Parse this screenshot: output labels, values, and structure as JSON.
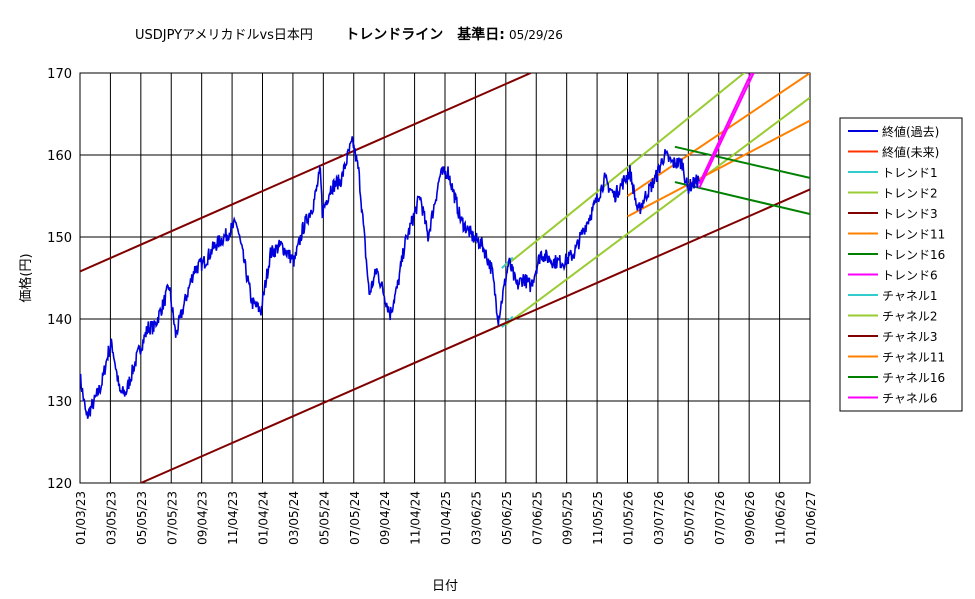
{
  "chart_data": {
    "type": "line",
    "title_left": "USDJPYアメリカドルvs日本円",
    "title_right": "トレンドライン　基準日:",
    "title_date": "05/29/26",
    "xlabel": "日付",
    "ylabel": "価格(円)",
    "ylim": [
      120,
      170
    ],
    "yticks": [
      120,
      130,
      140,
      150,
      160,
      170
    ],
    "grid": true,
    "legend_position": "right",
    "x_range": [
      "2023-01-03",
      "2027-01-06"
    ],
    "x_ticks": [
      "01/03/23",
      "03/05/23",
      "05/05/23",
      "07/05/23",
      "09/04/23",
      "11/04/23",
      "01/04/24",
      "03/05/24",
      "05/05/24",
      "07/05/24",
      "09/04/24",
      "11/04/24",
      "01/04/25",
      "03/06/25",
      "05/06/25",
      "07/06/25",
      "09/05/25",
      "11/05/25",
      "01/05/26",
      "03/07/26",
      "05/07/26",
      "07/07/26",
      "09/06/26",
      "11/06/26",
      "01/06/27"
    ],
    "legend": [
      {
        "name": "終値(過去)",
        "color": "#0000dd"
      },
      {
        "name": "終値(未来)",
        "color": "#ff3300"
      },
      {
        "name": "トレンド1",
        "color": "#33cccc"
      },
      {
        "name": "トレンド2",
        "color": "#99cc33"
      },
      {
        "name": "トレンド3",
        "color": "#800000"
      },
      {
        "name": "トレンド11",
        "color": "#ff8000"
      },
      {
        "name": "トレンド16",
        "color": "#008000"
      },
      {
        "name": "トレンド6",
        "color": "#ff00ff"
      },
      {
        "name": "チャネル1",
        "color": "#33cccc"
      },
      {
        "name": "チャネル2",
        "color": "#99cc33"
      },
      {
        "name": "チャネル3",
        "color": "#800000"
      },
      {
        "name": "チャネル11",
        "color": "#ff8000"
      },
      {
        "name": "チャネル16",
        "color": "#008000"
      },
      {
        "name": "チャネル6",
        "color": "#ff00ff"
      }
    ],
    "close_past": [
      [
        "2023-01-03",
        133
      ],
      [
        "2023-01-16",
        128
      ],
      [
        "2023-02-01",
        130
      ],
      [
        "2023-02-15",
        132
      ],
      [
        "2023-03-01",
        136
      ],
      [
        "2023-03-08",
        137
      ],
      [
        "2023-03-24",
        131
      ],
      [
        "2023-04-05",
        131
      ],
      [
        "2023-04-20",
        134
      ],
      [
        "2023-05-01",
        136
      ],
      [
        "2023-05-20",
        139
      ],
      [
        "2023-06-01",
        139
      ],
      [
        "2023-06-20",
        142
      ],
      [
        "2023-07-01",
        144
      ],
      [
        "2023-07-14",
        138
      ],
      [
        "2023-08-01",
        142
      ],
      [
        "2023-08-20",
        146
      ],
      [
        "2023-09-10",
        147
      ],
      [
        "2023-10-01",
        149
      ],
      [
        "2023-10-20",
        150
      ],
      [
        "2023-11-13",
        151.7
      ],
      [
        "2023-12-14",
        142
      ],
      [
        "2024-01-01",
        141
      ],
      [
        "2024-01-20",
        148
      ],
      [
        "2024-02-10",
        149
      ],
      [
        "2024-03-08",
        147
      ],
      [
        "2024-03-25",
        151
      ],
      [
        "2024-04-15",
        154
      ],
      [
        "2024-04-29",
        158
      ],
      [
        "2024-05-03",
        153
      ],
      [
        "2024-05-20",
        156
      ],
      [
        "2024-06-10",
        157
      ],
      [
        "2024-06-26",
        160.5
      ],
      [
        "2024-07-03",
        161.6
      ],
      [
        "2024-07-15",
        158
      ],
      [
        "2024-08-05",
        143
      ],
      [
        "2024-08-20",
        146
      ],
      [
        "2024-09-16",
        140.6
      ],
      [
        "2024-10-01",
        144
      ],
      [
        "2024-10-15",
        149
      ],
      [
        "2024-11-15",
        155
      ],
      [
        "2024-12-01",
        150
      ],
      [
        "2024-12-25",
        157.5
      ],
      [
        "2025-01-10",
        158
      ],
      [
        "2025-02-05",
        152
      ],
      [
        "2025-03-01",
        150
      ],
      [
        "2025-03-20",
        149
      ],
      [
        "2025-04-08",
        146
      ],
      [
        "2025-04-21",
        140
      ],
      [
        "2025-05-12",
        147
      ],
      [
        "2025-05-28",
        144
      ],
      [
        "2025-06-10",
        145
      ],
      [
        "2025-06-25",
        144
      ],
      [
        "2025-07-15",
        148
      ],
      [
        "2025-08-10",
        147
      ],
      [
        "2025-09-01",
        147
      ],
      [
        "2025-09-20",
        148
      ],
      [
        "2025-10-10",
        151
      ],
      [
        "2025-11-01",
        154
      ],
      [
        "2025-11-20",
        157
      ],
      [
        "2025-12-10",
        155
      ],
      [
        "2026-01-10",
        158
      ],
      [
        "2026-01-26",
        153
      ],
      [
        "2026-02-10",
        155
      ],
      [
        "2026-03-01",
        157
      ],
      [
        "2026-03-20",
        160
      ],
      [
        "2026-04-05",
        159
      ],
      [
        "2026-04-25",
        159
      ],
      [
        "2026-05-05",
        156
      ],
      [
        "2026-05-29",
        157
      ]
    ],
    "lines": [
      {
        "name": "トレンド1",
        "color": "#33cccc",
        "points": [
          [
            "2025-04-28",
            146.2
          ],
          [
            "2025-05-20",
            147.5
          ]
        ]
      },
      {
        "name": "チャネル1",
        "color": "#33cccc",
        "points": [
          [
            "2025-04-28",
            139
          ],
          [
            "2025-05-20",
            140.3
          ]
        ]
      },
      {
        "name": "トレンド2",
        "color": "#99cc33",
        "points": [
          [
            "2025-05-06",
            146.5
          ],
          [
            "2027-01-06",
            176.5
          ]
        ]
      },
      {
        "name": "チャネル2",
        "color": "#99cc33",
        "points": [
          [
            "2025-05-06",
            139.3
          ],
          [
            "2027-01-06",
            167
          ]
        ]
      },
      {
        "name": "トレンド3",
        "color": "#800000",
        "points": [
          [
            "2023-01-03",
            145.8
          ],
          [
            "2025-06-25",
            170
          ]
        ]
      },
      {
        "name": "チャネル3",
        "color": "#800000",
        "points": [
          [
            "2023-05-05",
            120
          ],
          [
            "2027-01-06",
            155.8
          ]
        ]
      },
      {
        "name": "トレンド11",
        "color": "#ff8000",
        "points": [
          [
            "2026-01-05",
            155
          ],
          [
            "2027-01-06",
            170
          ]
        ]
      },
      {
        "name": "チャネル11",
        "color": "#ff8000",
        "points": [
          [
            "2026-01-05",
            152.5
          ],
          [
            "2027-01-06",
            164.2
          ]
        ]
      },
      {
        "name": "トレンド16",
        "color": "#008000",
        "points": [
          [
            "2026-04-10",
            161
          ],
          [
            "2027-01-06",
            157.2
          ]
        ]
      },
      {
        "name": "チャネル16",
        "color": "#008000",
        "points": [
          [
            "2026-04-10",
            156.7
          ],
          [
            "2027-01-06",
            152.8
          ]
        ]
      },
      {
        "name": "トレンド6",
        "color": "#ff00ff",
        "points": [
          [
            "2026-05-29",
            156.5
          ],
          [
            "2026-09-10",
            170
          ]
        ]
      },
      {
        "name": "チャネル6",
        "color": "#ff00ff",
        "points": [
          [
            "2026-05-29",
            156
          ],
          [
            "2026-09-15",
            170
          ]
        ]
      }
    ]
  }
}
